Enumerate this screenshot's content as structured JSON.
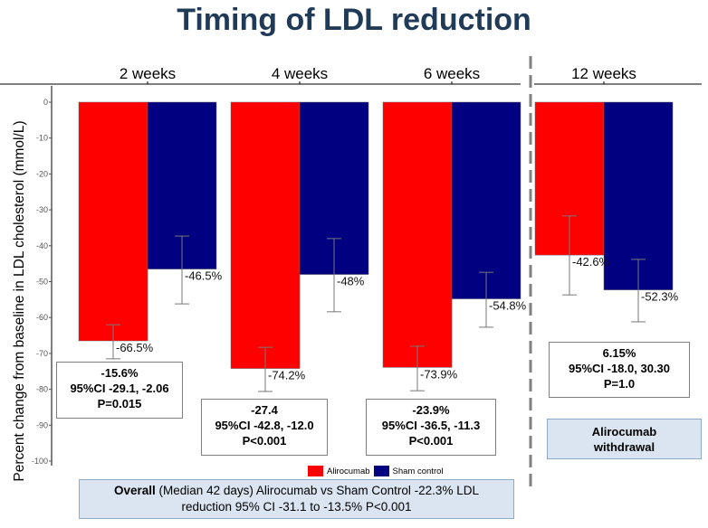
{
  "title": "Timing of LDL reduction",
  "chart_data": {
    "type": "bar",
    "title": "Timing of LDL reduction",
    "xlabel": "",
    "ylabel": "Percent change from baseline in LDL cholesterol (mmol/L)",
    "ylim": [
      -100,
      0
    ],
    "yticks": [
      0,
      -10,
      -20,
      -30,
      -40,
      -50,
      -60,
      -70,
      -80,
      -90,
      -100
    ],
    "ytick_labels": [
      "0",
      "-10",
      "-20",
      "-30",
      "-40",
      "-50",
      "-60",
      "-70",
      "-80",
      "-90",
      "-100"
    ],
    "grid": false,
    "legend_position": "bottom",
    "categories": [
      "2 weeks",
      "4 weeks",
      "6 weeks",
      "12 weeks"
    ],
    "series": [
      {
        "name": "Alirocumab",
        "color": "#ff0000",
        "values": [
          -66.5,
          -74.2,
          -73.9,
          -42.6
        ],
        "labels": [
          "-66.5%",
          "-74.2%",
          "-73.9%",
          "-42.6%"
        ],
        "error_low": [
          -71.5,
          -80.6,
          -80.4,
          -53.7
        ],
        "error_high": [
          -62.0,
          -68.3,
          -68.0,
          -31.7
        ]
      },
      {
        "name": "Sham control",
        "color": "#000080",
        "values": [
          -46.5,
          -48.0,
          -54.8,
          -52.3
        ],
        "labels": [
          "-46.5%",
          "-48%",
          "-54.8%",
          "-52.3%"
        ],
        "error_low": [
          -56.2,
          -58.4,
          -62.7,
          -61.2
        ],
        "error_high": [
          -37.3,
          -38.0,
          -47.4,
          -43.8
        ]
      }
    ],
    "annotations": [
      {
        "category": "2 weeks",
        "lines": [
          "-15.6%",
          "95%CI -29.1, -2.06",
          "P=0.015"
        ]
      },
      {
        "category": "4 weeks",
        "lines": [
          "-27.4",
          "95%CI -42.8, -12.0",
          "P<0.001"
        ]
      },
      {
        "category": "6 weeks",
        "lines": [
          "-23.9%",
          "95%CI -36.5, -11.3",
          "P<0.001"
        ]
      },
      {
        "category": "12 weeks",
        "lines": [
          "6.15%",
          "95%CI -18.0, 30.30",
          "P=1.0"
        ]
      }
    ],
    "divider_before": "12 weeks"
  },
  "withdrawal_box": {
    "line1": "Alirocumab",
    "line2": "withdrawal"
  },
  "overall_box": {
    "bold": "Overall",
    "line1_rest": " (Median 42 days)  Alirocumab vs Sham Control -22.3% LDL",
    "line2": "reduction  95% CI -31.1 to -13.5% P<0.001"
  },
  "legend": [
    {
      "label": "Alirocumab",
      "color": "#ff0000"
    },
    {
      "label": "Sham control",
      "color": "#000080"
    }
  ]
}
